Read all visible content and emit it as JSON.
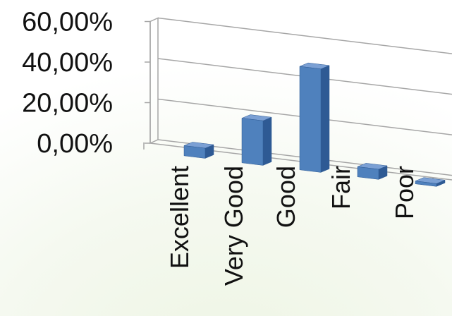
{
  "chart_data": {
    "type": "bar",
    "style": "3d-column",
    "categories": [
      "Excellent",
      "Very Good",
      "Good",
      "Fair",
      "Poor"
    ],
    "values": [
      5,
      22,
      51,
      5,
      1
    ],
    "unit": "%",
    "yticks": [
      "0,00%",
      "20,00%",
      "40,00%",
      "60,00%"
    ],
    "ylim": [
      0,
      60
    ],
    "grid": true,
    "legend": "none",
    "title": "",
    "xlabel": "",
    "ylabel": ""
  },
  "colors": {
    "bar_front": "#4F81BD",
    "bar_top": "#7BA0D4",
    "bar_side": "#2E5A94",
    "grid": "#A6A6A6",
    "background_tint": "#EEF5E4"
  }
}
